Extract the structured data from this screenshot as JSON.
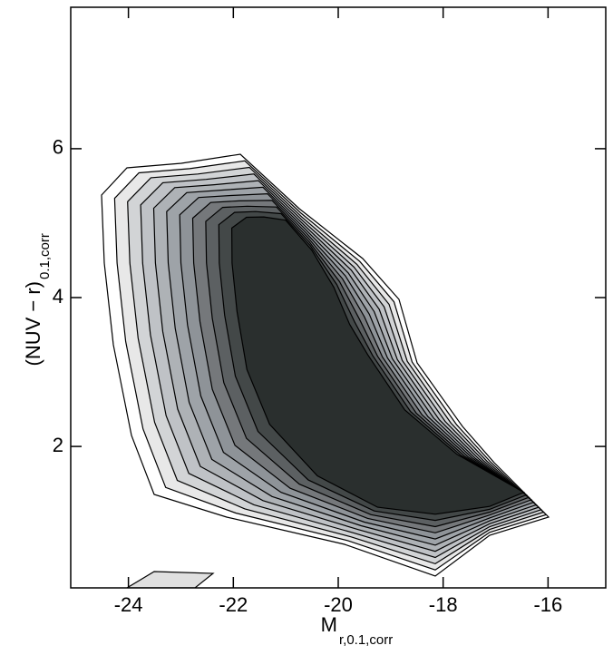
{
  "chart_data": {
    "type": "contour",
    "xlabel": "M",
    "xlabel_sub": "r,0.1,corr",
    "ylabel": "(NUV − r)",
    "ylabel_sub": "0.1,corr",
    "xlim": [
      -25.1,
      -14.9
    ],
    "xticks": [
      -24,
      -22,
      -20,
      -18,
      -16
    ],
    "ylim": [
      0.1,
      7.9
    ],
    "yticks": [
      2,
      4,
      6
    ]
  }
}
